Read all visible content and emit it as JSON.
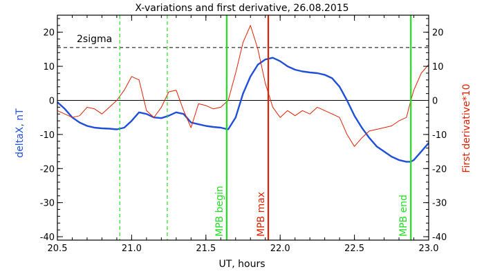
{
  "chart_data": {
    "type": "line",
    "title": "X-variations and first derivative, 26.08.2015",
    "xlabel": "UT, hours",
    "ylabel_left": "deltaX, nT",
    "ylabel_right": "First derivative*10",
    "xlim": [
      20.5,
      23.0
    ],
    "ylim": [
      -41,
      25
    ],
    "x_ticks": [
      "20.5",
      "21.0",
      "21.5",
      "22.0",
      "22.5",
      "23.0"
    ],
    "y_ticks": [
      "20",
      "10",
      "0",
      "-10",
      "-20",
      "-30",
      "-40"
    ],
    "grid": false,
    "colors": {
      "deltaX": "#1f4fd8",
      "derivative": "#e02000",
      "mpb_begin_end": "#22dd22",
      "mpb_max": "#dd2200",
      "frame": "#000000"
    },
    "series": [
      {
        "name": "deltaX, nT",
        "axis": "left",
        "x": [
          20.5,
          20.55,
          20.6,
          20.65,
          20.7,
          20.75,
          20.8,
          20.85,
          20.9,
          20.95,
          21.0,
          21.05,
          21.1,
          21.15,
          21.2,
          21.25,
          21.3,
          21.35,
          21.4,
          21.45,
          21.5,
          21.55,
          21.6,
          21.65,
          21.7,
          21.75,
          21.8,
          21.85,
          21.9,
          21.95,
          22.0,
          22.05,
          22.1,
          22.15,
          22.2,
          22.25,
          22.3,
          22.35,
          22.4,
          22.45,
          22.5,
          22.55,
          22.6,
          22.65,
          22.7,
          22.75,
          22.8,
          22.85,
          22.88,
          22.9,
          22.95,
          23.0
        ],
        "y": [
          -0.5,
          -2.5,
          -5.0,
          -6.5,
          -7.5,
          -8.0,
          -8.2,
          -8.3,
          -8.5,
          -8.0,
          -6.0,
          -3.5,
          -4.0,
          -5.0,
          -5.2,
          -4.5,
          -3.5,
          -4.0,
          -6.5,
          -7.0,
          -7.5,
          -7.8,
          -8.0,
          -8.5,
          -5.0,
          2.0,
          7.0,
          10.5,
          12.0,
          12.5,
          11.5,
          10.0,
          9.0,
          8.5,
          8.2,
          8.0,
          7.5,
          6.5,
          4.0,
          0.0,
          -4.5,
          -8.0,
          -11.0,
          -13.5,
          -15.0,
          -16.5,
          -17.5,
          -18.0,
          -18.0,
          -17.5,
          -15.0,
          -12.5
        ]
      },
      {
        "name": "First derivative*10",
        "axis": "right",
        "x": [
          20.5,
          20.55,
          20.6,
          20.65,
          20.7,
          20.75,
          20.8,
          20.85,
          20.9,
          20.95,
          21.0,
          21.05,
          21.1,
          21.15,
          21.2,
          21.25,
          21.3,
          21.35,
          21.4,
          21.45,
          21.5,
          21.55,
          21.6,
          21.65,
          21.7,
          21.75,
          21.8,
          21.85,
          21.9,
          21.95,
          22.0,
          22.05,
          22.1,
          22.15,
          22.2,
          22.25,
          22.3,
          22.35,
          22.4,
          22.45,
          22.5,
          22.55,
          22.6,
          22.65,
          22.7,
          22.75,
          22.8,
          22.85,
          22.88,
          22.9,
          22.95,
          23.0
        ],
        "y": [
          -3.0,
          -4.0,
          -5.0,
          -4.5,
          -2.0,
          -2.5,
          -4.0,
          -2.0,
          0.0,
          3.0,
          7.0,
          6.0,
          -3.0,
          -5.0,
          -2.0,
          2.5,
          3.0,
          -3.0,
          -8.0,
          -1.0,
          -1.5,
          -2.5,
          -2.0,
          0.0,
          8.0,
          17.0,
          22.0,
          15.0,
          5.0,
          -2.0,
          -5.0,
          -3.0,
          -4.5,
          -3.0,
          -4.0,
          -2.0,
          -3.0,
          -4.0,
          -5.0,
          -10.0,
          -13.5,
          -11.0,
          -9.0,
          -8.5,
          -8.0,
          -7.5,
          -6.0,
          -5.0,
          0.0,
          3.0,
          8.0,
          10.5
        ]
      }
    ],
    "reference_lines": {
      "zero": {
        "y": 0
      },
      "two_sigma": {
        "y": 15.5,
        "label": "2sigma"
      }
    },
    "vertical_markers": [
      {
        "x": 20.92,
        "style": "dashed",
        "color": "#22dd22",
        "label": ""
      },
      {
        "x": 21.24,
        "style": "dashed",
        "color": "#22dd22",
        "label": ""
      },
      {
        "x": 21.64,
        "style": "solid",
        "color": "#22dd22",
        "label": "MPB begin"
      },
      {
        "x": 21.92,
        "style": "solid",
        "color": "#dd2200",
        "label": "MPB max"
      },
      {
        "x": 22.88,
        "style": "solid",
        "color": "#22dd22",
        "label": "MPB end"
      }
    ]
  }
}
